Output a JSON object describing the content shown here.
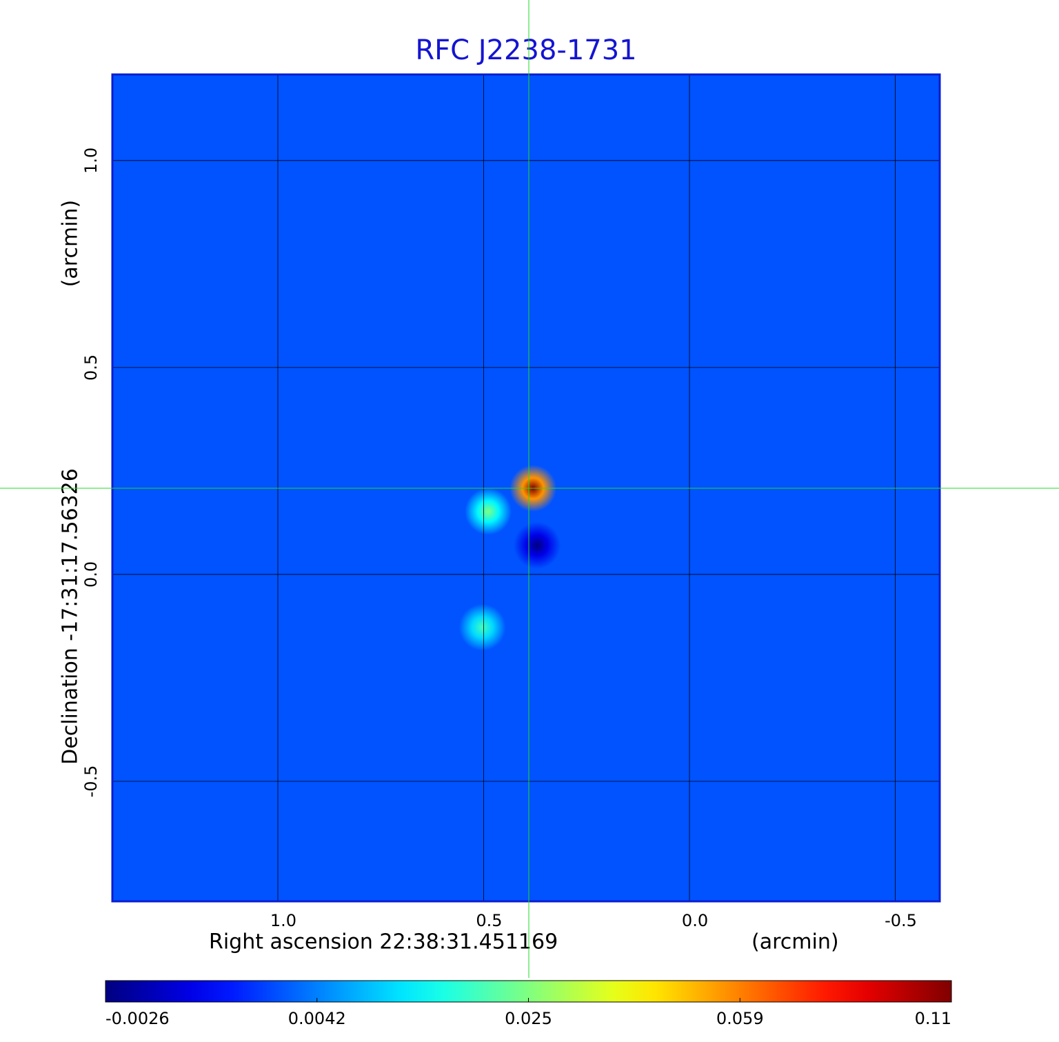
{
  "chart_data": {
    "type": "heatmap",
    "title": "RFC J2238-1731",
    "xlabel": "Right ascension  22:38:31.451169",
    "xunit": "(arcmin)",
    "ylabel": "Declination  -17:31:17.56326",
    "yunit": "(arcmin)",
    "xlim": [
      1.402,
      -0.608
    ],
    "ylim": [
      -0.79,
      1.208
    ],
    "xticks": [
      {
        "value": 1.0,
        "label": "1.0"
      },
      0.5,
      {
        "value": 0.0,
        "label": "0.0"
      },
      -0.5
    ],
    "yticks": [
      {
        "value": 1.0,
        "label": "1.0"
      },
      0.5,
      {
        "value": 0.0,
        "label": "0.0"
      },
      -0.5
    ],
    "grid": true,
    "background": 0.003,
    "sources": [
      {
        "x": 0.38,
        "y": 0.208,
        "value": 0.11
      },
      {
        "x": 0.489,
        "y": 0.152,
        "value": 0.025
      },
      {
        "x": 0.503,
        "y": -0.128,
        "value": 0.02
      },
      {
        "x": 0.37,
        "y": 0.07,
        "value": -0.0026
      }
    ],
    "colorbar_ticks": [
      -0.0026,
      0.0042,
      0.025,
      0.059,
      0.11
    ]
  }
}
